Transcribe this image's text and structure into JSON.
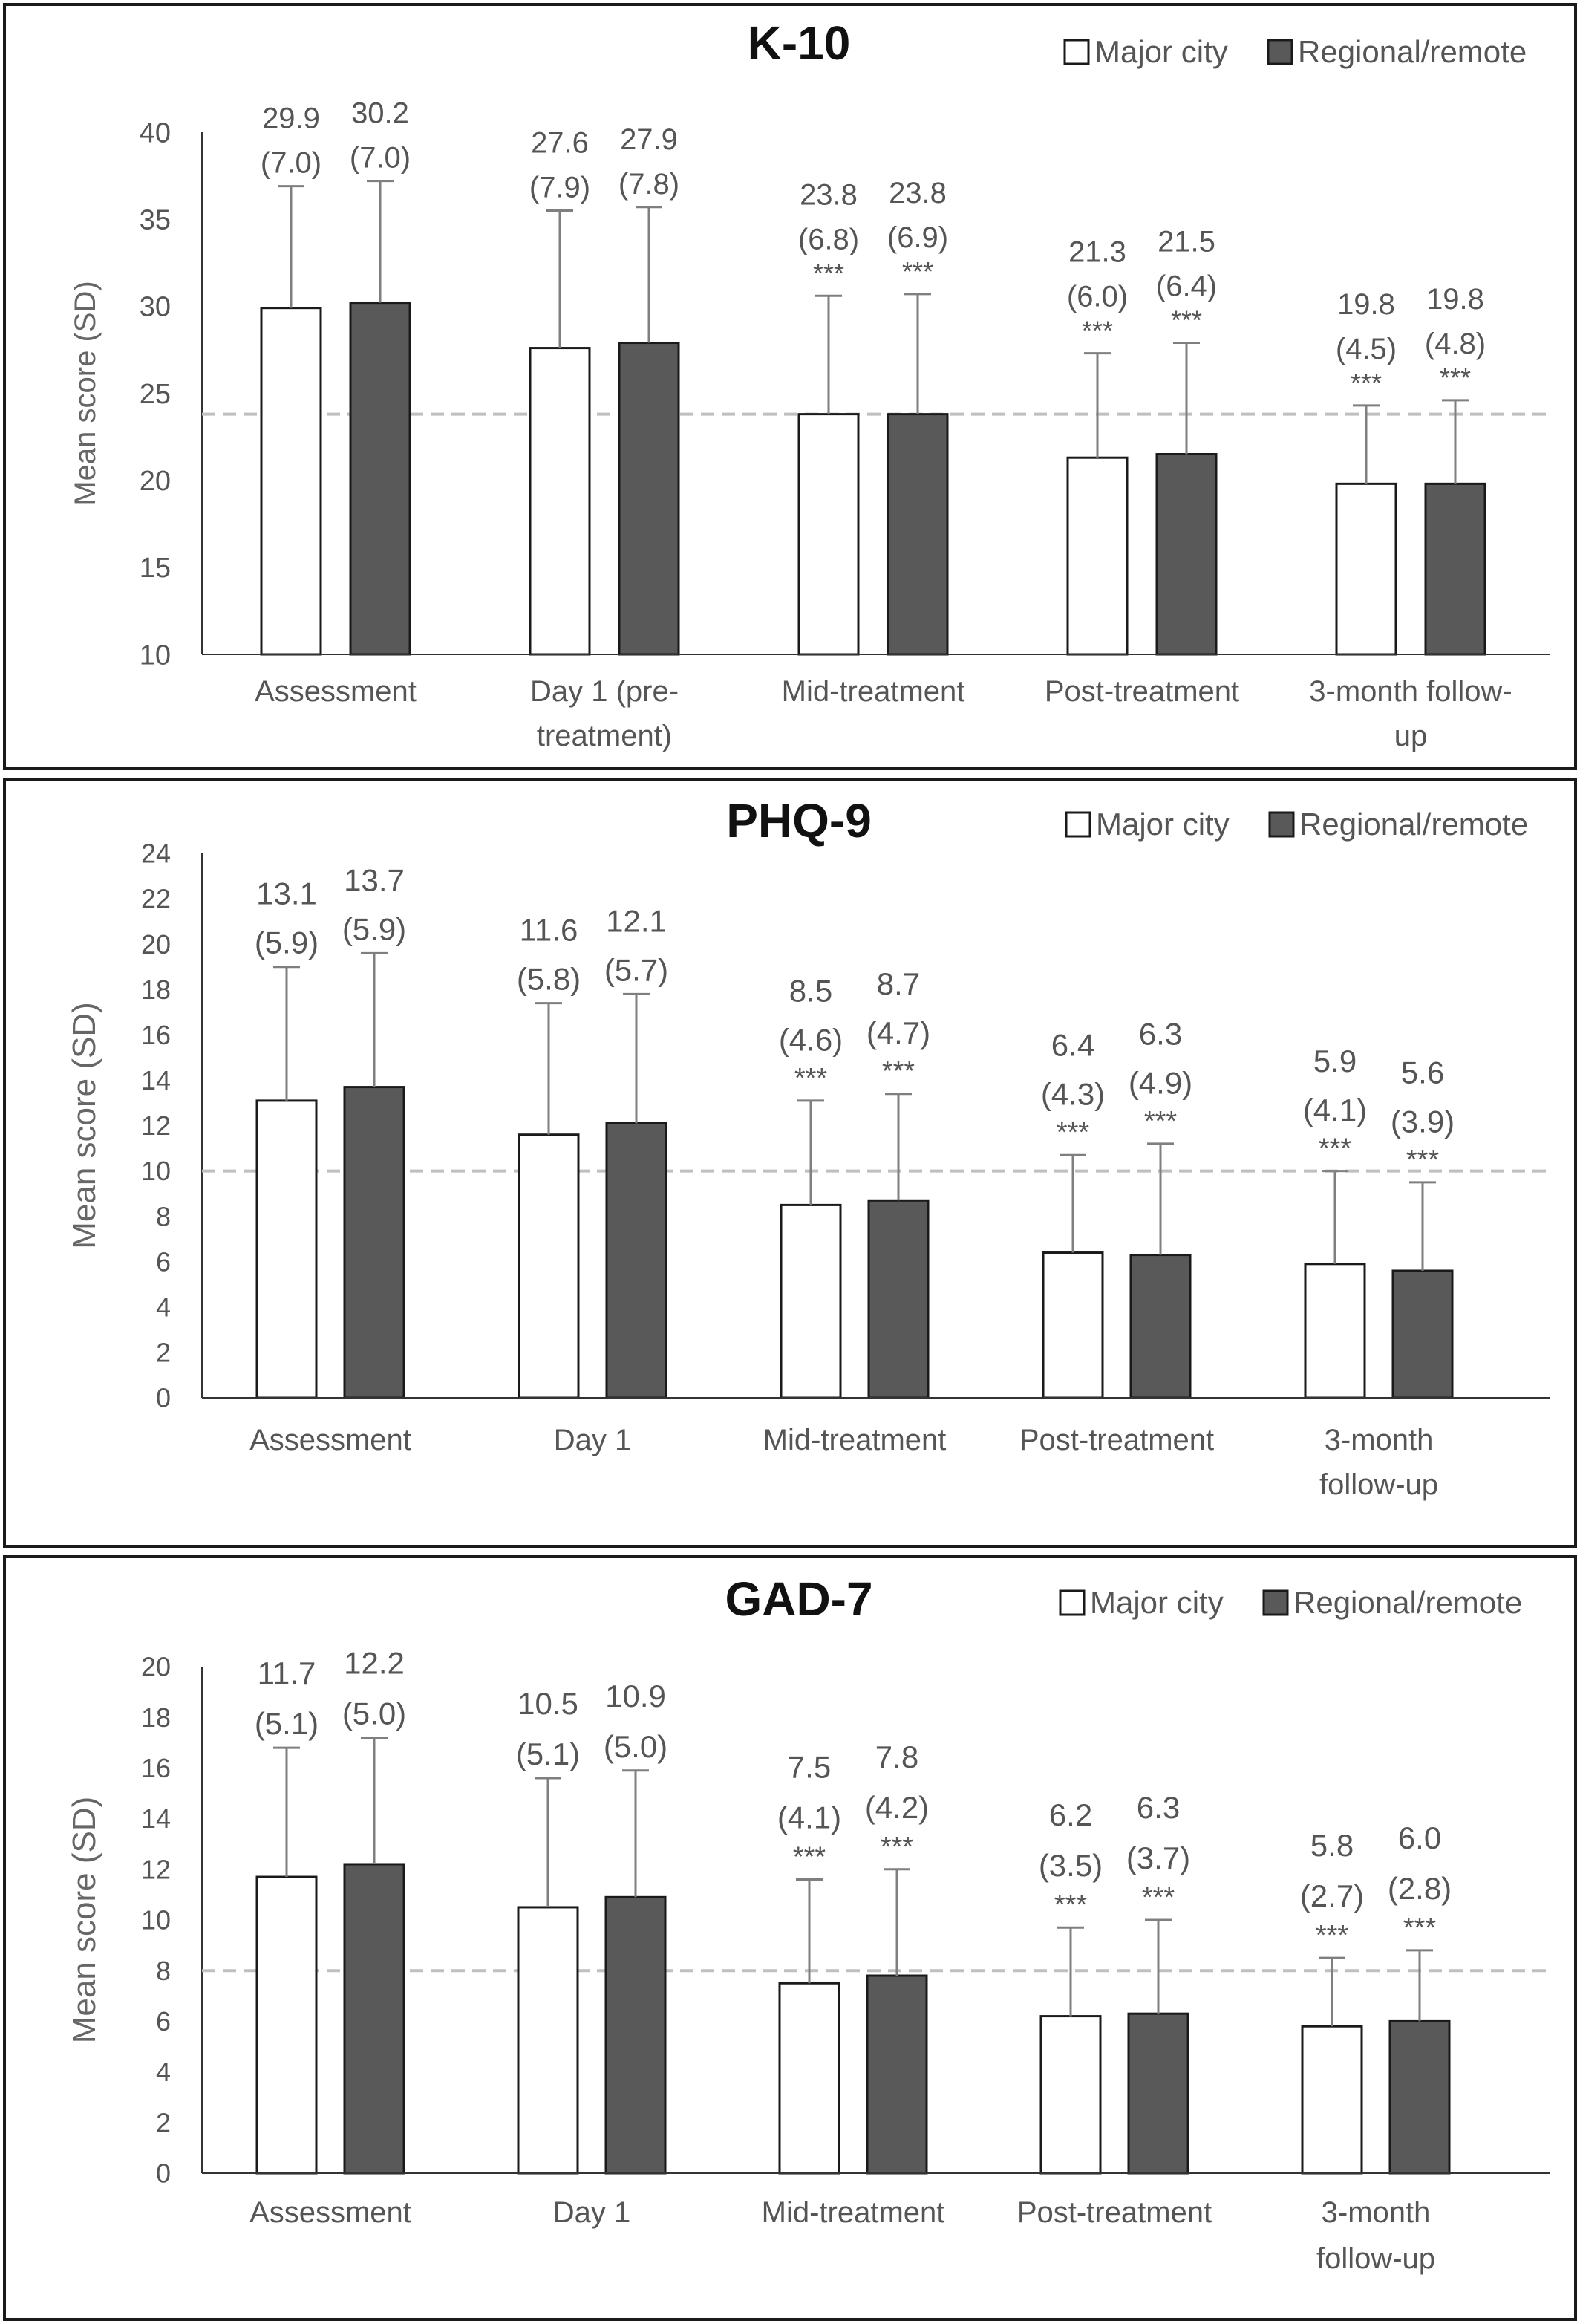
{
  "chart_data": [
    {
      "type": "bar",
      "title": "K-10",
      "ylabel": "Mean score (SD)",
      "ylim": [
        10,
        40
      ],
      "yticks": [
        10,
        15,
        20,
        25,
        30,
        35,
        40
      ],
      "categories": [
        "Assessment",
        "Day 1 (pre-treatment)",
        "Mid-treatment",
        "Post-treatment",
        "3-month follow-up"
      ],
      "category_lines": [
        [
          "Assessment"
        ],
        [
          "Day 1 (pre-",
          "treatment)"
        ],
        [
          "Mid-treatment"
        ],
        [
          "Post-treatment"
        ],
        [
          "3-month follow-",
          "up"
        ]
      ],
      "reference_line": 23.8,
      "series": [
        {
          "name": "Major city",
          "values": [
            29.9,
            27.6,
            23.8,
            21.3,
            19.8
          ],
          "sd": [
            7.0,
            7.9,
            6.8,
            6.0,
            4.5
          ],
          "sd_labels": [
            "(7.0)",
            "(7.9)",
            "(6.8)",
            "(6.0)",
            "(4.5)"
          ],
          "sig": [
            "",
            "",
            "***",
            "***",
            "***"
          ]
        },
        {
          "name": "Regional/remote",
          "values": [
            30.2,
            27.9,
            23.8,
            21.5,
            19.8
          ],
          "sd": [
            7.0,
            7.8,
            6.9,
            6.4,
            4.8
          ],
          "sd_labels": [
            "(7.0)",
            "(7.8)",
            "(6.9)",
            "(6.4)",
            "(4.8)"
          ],
          "sig": [
            "",
            "",
            "***",
            "***",
            "***"
          ]
        }
      ],
      "legend_position": "top-right"
    },
    {
      "type": "bar",
      "title": "PHQ-9",
      "ylabel": "Mean score (SD)",
      "ylim": [
        0,
        24
      ],
      "yticks": [
        0,
        2,
        4,
        6,
        8,
        10,
        12,
        14,
        16,
        18,
        20,
        22,
        24
      ],
      "categories": [
        "Assessment",
        "Day 1",
        "Mid-treatment",
        "Post-treatment",
        "3-month follow-up"
      ],
      "category_lines": [
        [
          "Assessment"
        ],
        [
          "Day 1"
        ],
        [
          "Mid-treatment"
        ],
        [
          "Post-treatment"
        ],
        [
          "3-month",
          "follow-up"
        ]
      ],
      "reference_line": 10,
      "series": [
        {
          "name": "Major city",
          "values": [
            13.1,
            11.6,
            8.5,
            6.4,
            5.9
          ],
          "sd": [
            5.9,
            5.8,
            4.6,
            4.3,
            4.1
          ],
          "sd_labels": [
            "(5.9)",
            "(5.8)",
            "(4.6)",
            "(4.3)",
            "(4.1)"
          ],
          "sig": [
            "",
            "",
            "***",
            "***",
            "***"
          ]
        },
        {
          "name": "Regional/remote",
          "values": [
            13.7,
            12.1,
            8.7,
            6.3,
            5.6
          ],
          "sd": [
            5.9,
            5.7,
            4.7,
            4.9,
            3.9
          ],
          "sd_labels": [
            "(5.9)",
            "(5.7)",
            "(4.7)",
            "(4.9)",
            "(3.9)"
          ],
          "sig": [
            "",
            "",
            "***",
            "***",
            "***"
          ]
        }
      ],
      "legend_position": "top-right"
    },
    {
      "type": "bar",
      "title": "GAD-7",
      "ylabel": "Mean score (SD)",
      "ylim": [
        0,
        20
      ],
      "yticks": [
        0,
        2,
        4,
        6,
        8,
        10,
        12,
        14,
        16,
        18,
        20
      ],
      "categories": [
        "Assessment",
        "Day 1",
        "Mid-treatment",
        "Post-treatment",
        "3-month follow-up"
      ],
      "category_lines": [
        [
          "Assessment"
        ],
        [
          "Day 1"
        ],
        [
          "Mid-treatment"
        ],
        [
          "Post-treatment"
        ],
        [
          "3-month",
          "follow-up"
        ]
      ],
      "reference_line": 8,
      "series": [
        {
          "name": "Major city",
          "values": [
            11.7,
            10.5,
            7.5,
            6.2,
            5.8
          ],
          "sd": [
            5.1,
            5.1,
            4.1,
            3.5,
            2.7
          ],
          "sd_labels": [
            "(5.1)",
            "(5.1)",
            "(4.1)",
            "(3.5)",
            "(2.7)"
          ],
          "sig": [
            "",
            "",
            "***",
            "***",
            "***"
          ]
        },
        {
          "name": "Regional/remote",
          "values": [
            12.2,
            10.9,
            7.8,
            6.3,
            6.0
          ],
          "sd": [
            5.0,
            5.0,
            4.2,
            3.7,
            2.8
          ],
          "sd_labels": [
            "(5.0)",
            "(5.0)",
            "(4.2)",
            "(3.7)",
            "(2.8)"
          ],
          "sig": [
            "",
            "",
            "***",
            "***",
            "***"
          ]
        }
      ],
      "legend_position": "top-right"
    }
  ],
  "colors": {
    "major_city": "#ffffff",
    "regional_remote": "#595959",
    "bar_stroke": "#1a1a1a",
    "error_bar": "#7f7f7f",
    "reference_line": "#bfbfbf",
    "axis": "#333333",
    "text": "#555555"
  }
}
